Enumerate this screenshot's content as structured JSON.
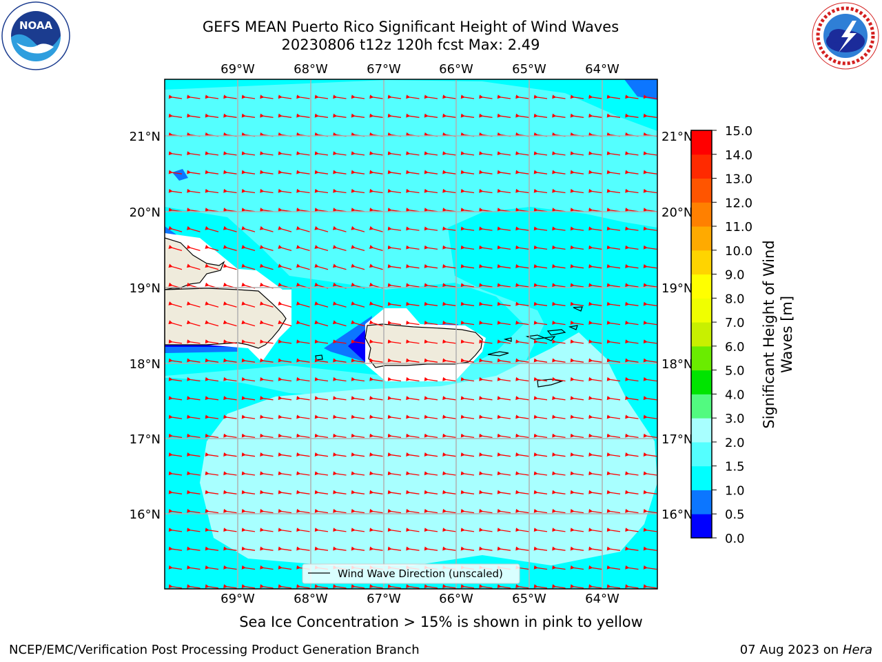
{
  "title": {
    "line1": "GEFS MEAN Puerto Rico Significant Height of Wind Waves",
    "line2": "20230806 t12z 120h fcst   Max: 2.49"
  },
  "logos": {
    "noaa": {
      "text": "NOAA",
      "ring_text": "NATIONAL OCEANIC AND ATMOSPHERIC ADMINISTRATION · U.S. DEPARTMENT OF COMMERCE"
    },
    "nws": {
      "ring_text": "NATIONAL WEATHER SERVICE"
    }
  },
  "map": {
    "lon_labels": [
      "69°W",
      "68°W",
      "67°W",
      "66°W",
      "65°W",
      "64°W"
    ],
    "lat_labels": [
      "21°N",
      "20°N",
      "19°N",
      "18°N",
      "17°N",
      "16°N"
    ],
    "legend_label": "Wind Wave Direction (unscaled)",
    "colors": {
      "land": "#efebdc",
      "arrow": "#ff0000",
      "grid": "#b0b0b0"
    }
  },
  "colorbar": {
    "label_line1": "Significant Height of Wind",
    "label_line2": "Waves [m]",
    "ticks": [
      "0.0",
      "0.5",
      "1.0",
      "1.5",
      "2.0",
      "3.0",
      "4.0",
      "5.0",
      "6.0",
      "7.0",
      "8.0",
      "9.0",
      "10.0",
      "11.0",
      "12.0",
      "13.0",
      "14.0",
      "15.0"
    ],
    "colors": [
      "#0000ff",
      "#0c76ff",
      "#00ffff",
      "#54ffff",
      "#a8ffff",
      "#52fa80",
      "#00e400",
      "#6aec00",
      "#c8f000",
      "#f0ff00",
      "#ffff00",
      "#ffd400",
      "#ffaa00",
      "#ff8000",
      "#ff5500",
      "#ff2a00",
      "#ff0000"
    ]
  },
  "chart_data": {
    "type": "heatmap",
    "title": "GEFS MEAN Puerto Rico Significant Height of Wind Waves",
    "subtitle": "20230806 t12z 120h fcst   Max: 2.49",
    "variable": "Significant Height of Wind Waves [m]",
    "lon_range_deg_e": [
      -69.99,
      -63.2
    ],
    "lat_range_deg_n": [
      15.0,
      21.75
    ],
    "max_value": 2.49,
    "levels": [
      0.0,
      0.5,
      1.0,
      1.5,
      2.0,
      3.0,
      4.0,
      5.0,
      6.0,
      7.0,
      8.0,
      9.0,
      10.0,
      11.0,
      12.0,
      13.0,
      14.0,
      15.0
    ],
    "dominant_ranges": {
      "north_and_open_water": "1.0-1.5",
      "central_band": "1.5-2.0",
      "south_caribbean": "2.0-3.0",
      "sheltered_coasts": "0.0-1.0"
    },
    "wind_wave_direction": "toward west (easterly trade-wind waves)",
    "grid": true
  },
  "footer": {
    "note": "Sea Ice Concentration > 15% is shown in pink to yellow",
    "left": "NCEP/EMC/Verification Post Processing Product Generation Branch",
    "date": "07 Aug 2023 on",
    "machine": "Hera"
  }
}
